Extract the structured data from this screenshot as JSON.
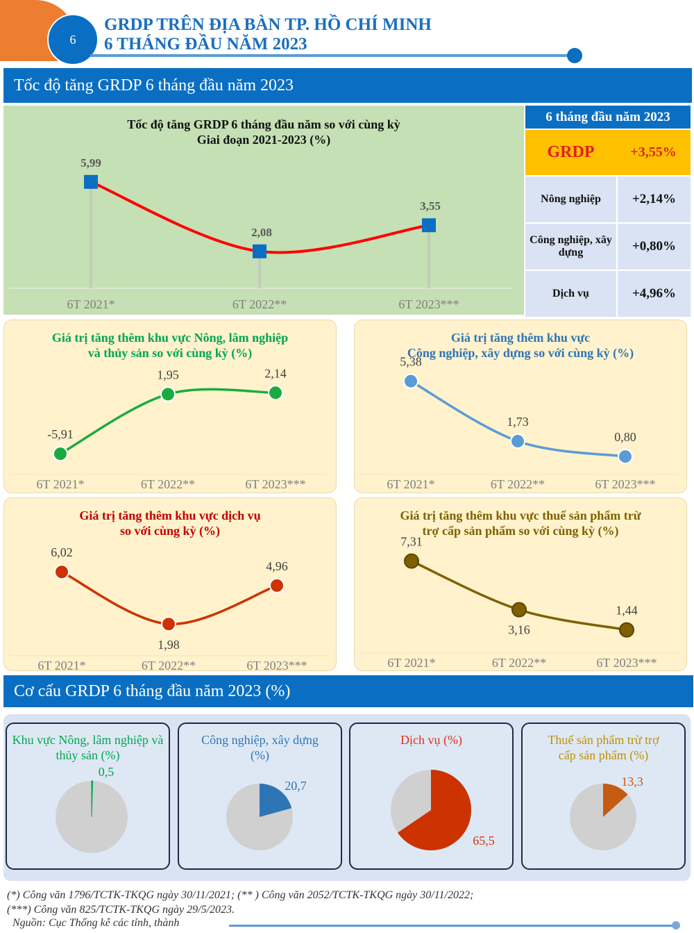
{
  "header": {
    "page_number": "6",
    "title_line1": "GRDP TRÊN ĐỊA BÀN TP. HỒ CHÍ MINH",
    "title_line2": "6 THÁNG ĐẦU NĂM 2023",
    "colors": {
      "accent": "#0a6fc2",
      "orange": "#ed7d31"
    }
  },
  "section1": {
    "title": "Tốc độ tăng GRDP 6 tháng đầu năm 2023"
  },
  "summary": {
    "header": "6 tháng đầu năm 2023",
    "grdp": {
      "label": "GRDP",
      "value": "+3,55%"
    },
    "rows": [
      {
        "label": "Nông nghiệp",
        "value": "+2,14%"
      },
      {
        "label": "Công nghiệp, xây dựng",
        "value": "+0,80%"
      },
      {
        "label": "Dịch vụ",
        "value": "+4,96%"
      }
    ]
  },
  "section2": {
    "title": "Cơ cấu GRDP 6 tháng đầu năm 2023 (%)"
  },
  "chart_data": [
    {
      "type": "line",
      "title_line1": "Tốc độ tăng GRDP 6 tháng đầu năm so với cùng kỳ",
      "title_line2": "Giai đoạn 2021-2023 (%)",
      "categories": [
        "6T 2021*",
        "6T 2022**",
        "6T 2023***"
      ],
      "values": [
        5.99,
        2.08,
        3.55
      ],
      "labels": [
        "5,99",
        "2,08",
        "3,55"
      ],
      "ylim": [
        0,
        7
      ],
      "color": "#ff0000",
      "marker_color": "#0a6fc2",
      "marker": "square"
    },
    {
      "type": "line",
      "title_line1": "Giá trị tăng thêm khu vực Nông, lâm nghiệp",
      "title_line2": "và thủy sản so với cùng kỳ (%)",
      "categories": [
        "6T 2021*",
        "6T 2022**",
        "6T 2023***"
      ],
      "values": [
        -5.91,
        1.95,
        2.14
      ],
      "labels": [
        "-5,91",
        "1,95",
        "2,14"
      ],
      "ylim": [
        -8,
        4
      ],
      "color": "#1aab40",
      "title_color": "#00a651"
    },
    {
      "type": "line",
      "title_line1": "Giá trị tăng thêm khu vực",
      "title_line2": "Công nghiệp, xây dựng so với cùng kỳ (%)",
      "categories": [
        "6T 2021*",
        "6T 2022**",
        "6T 2023***"
      ],
      "values": [
        5.38,
        1.73,
        0.8
      ],
      "labels": [
        "5,38",
        "1,73",
        "0,80"
      ],
      "ylim": [
        0,
        6
      ],
      "color": "#5b9bd5",
      "title_color": "#2e75b6"
    },
    {
      "type": "line",
      "title_line1": "Giá trị tăng thêm khu vực dịch vụ",
      "title_line2": "so với cùng kỳ (%)",
      "categories": [
        "6T 2021*",
        "6T 2022**",
        "6T 2023***"
      ],
      "values": [
        6.02,
        1.98,
        4.96
      ],
      "labels": [
        "6,02",
        "1,98",
        "4,96"
      ],
      "ylim": [
        0,
        7
      ],
      "color": "#cc3300",
      "title_color": "#c00000"
    },
    {
      "type": "line",
      "title_line1": "Giá trị tăng thêm khu vực thuế sản phẩm trừ",
      "title_line2": "trợ cấp sản phẩm so với cùng kỳ (%)",
      "categories": [
        "6T 2021*",
        "6T 2022**",
        "6T 2023***"
      ],
      "values": [
        7.31,
        3.16,
        1.44
      ],
      "labels": [
        "7,31",
        "3,16",
        "1,44"
      ],
      "ylim": [
        0,
        8
      ],
      "color": "#7f6000",
      "title_color": "#7f6000"
    },
    {
      "type": "pie",
      "title": "Khu vực Nông, lâm nghiệp và thủy sản (%)",
      "value": 0.5,
      "label": "0,5",
      "color": "#00a651",
      "rest_color": "#d0d0d0"
    },
    {
      "type": "pie",
      "title": "Công nghiệp, xây dựng (%)",
      "value": 20.7,
      "label": "20,7",
      "color": "#2e75b6",
      "rest_color": "#d0d0d0"
    },
    {
      "type": "pie",
      "title": "Dịch vụ (%)",
      "value": 65.5,
      "label": "65,5",
      "color": "#cc3300",
      "rest_color": "#d0d0d0"
    },
    {
      "type": "pie",
      "title": "Thuế sản phẩm trừ trợ cấp sản phẩm (%)",
      "value": 13.3,
      "label": "13,3",
      "color": "#c55a11",
      "rest_color": "#d0d0d0"
    }
  ],
  "footer": {
    "note1": "(*) Công văn 1796/TCTK-TKQG ngày 30/11/2021; (** ) Công văn 2052/TCTK-TKQG ngày 30/11/2022;",
    "note2": "(***) Công văn 825/TCTK-TKQG ngày 29/5/2023.",
    "source": "Nguồn: Cục Thống kê các tỉnh, thành"
  }
}
